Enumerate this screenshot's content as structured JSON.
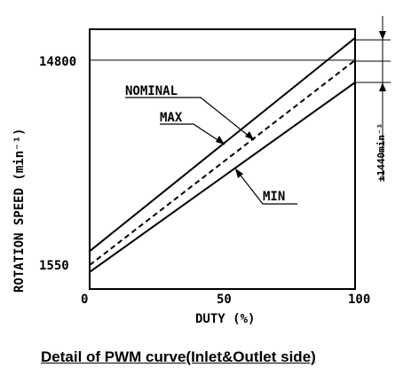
{
  "chart_data": {
    "type": "line",
    "xlabel": "DUTY (%)",
    "ylabel": "ROTATION SPEED (min⁻¹)",
    "x_ticks": [
      "0",
      "50",
      "100"
    ],
    "y_ticks": [
      "1550",
      "14800"
    ],
    "xlim": [
      0,
      100
    ],
    "ylim": [
      0,
      16800
    ],
    "series": [
      {
        "name": "MAX",
        "style": "solid",
        "x": [
          0,
          100
        ],
        "y": [
          2450,
          16240
        ]
      },
      {
        "name": "NOMINAL",
        "style": "dashed",
        "x": [
          0,
          100
        ],
        "y": [
          1550,
          14800
        ]
      },
      {
        "name": "MIN",
        "style": "solid",
        "x": [
          0,
          100
        ],
        "y": [
          1100,
          13360
        ]
      }
    ],
    "reference_line": {
      "y": 14800
    },
    "tolerance_label": "±1440min⁻¹",
    "caption": "Detail of PWM curve(Inlet&Outlet side)"
  }
}
